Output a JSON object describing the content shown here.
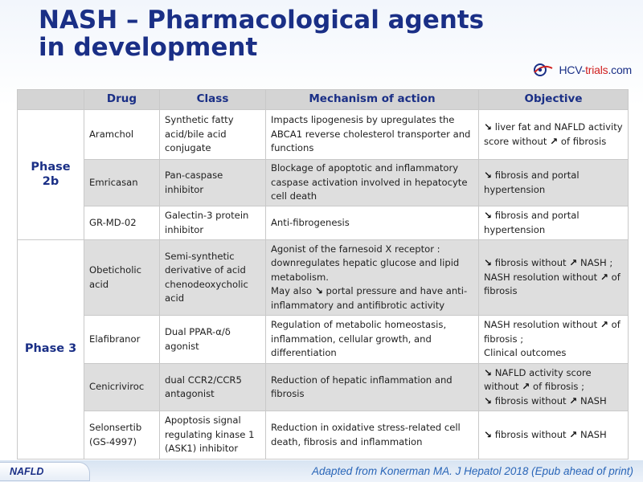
{
  "title": {
    "line1": "NASH – Pharmacological agents",
    "line2": "in development"
  },
  "logo": {
    "text_main": "HCV-",
    "text_accent": "trials",
    "text_end": ".com"
  },
  "table": {
    "headers": [
      "",
      "Drug",
      "Class",
      "Mechanism of action",
      "Objective"
    ],
    "phases": [
      "Phase 2b",
      "Phase 3"
    ],
    "rows": [
      {
        "drug": "Aramchol",
        "class": "Synthetic fatty acid/bile acid conjugate",
        "mechanism": "Impacts lipogenesis by upregulates the ABCA1 reverse cholesterol transporter and functions",
        "objective": [
          "↘",
          " liver fat and NAFLD activity score without ",
          "↗",
          " of fibrosis"
        ]
      },
      {
        "drug": "Emricasan",
        "class": "Pan-caspase inhibitor",
        "mechanism": "Blockage of apoptotic and inflammatory caspase activation involved in hepatocyte cell death",
        "objective": [
          "↘",
          " fibrosis and portal hypertension"
        ]
      },
      {
        "drug": "GR-MD-02",
        "class": "Galectin-3 protein inhibitor",
        "mechanism": "Anti-fibrogenesis",
        "objective": [
          "↘",
          " fibrosis and portal hypertension"
        ]
      },
      {
        "drug": "Obeticholic acid",
        "class": "Semi-synthetic derivative of acid chenodeoxycholic acid",
        "mechanism_lines": [
          "Agonist of the farnesoid X receptor : downregulates hepatic glucose and lipid metabolism.",
          "May also ",
          "↘",
          " portal pressure and have anti-inflammatory and antifibrotic activity"
        ],
        "objective": [
          "↘",
          " fibrosis without ",
          "↗",
          " NASH ; NASH resolution without ",
          "↗",
          " of fibrosis"
        ]
      },
      {
        "drug": "Elafibranor",
        "class": "Dual PPAR-α/δ agonist",
        "mechanism": "Regulation of metabolic homeostasis, inflammation, cellular growth, and differentiation",
        "objective": [
          "NASH resolution without ",
          "↗",
          " of fibrosis ;",
          "Clinical outcomes"
        ]
      },
      {
        "drug": "Cenicriviroc",
        "class": "dual CCR2/CCR5 antagonist",
        "mechanism": "Reduction of hepatic inflammation and fibrosis",
        "objective": [
          "↘",
          " NAFLD activity score without ",
          "↗",
          " of fibrosis ;",
          "↘",
          " fibrosis without ",
          "↗",
          " NASH"
        ]
      },
      {
        "drug": "Selonsertib (GS-4997)",
        "class": "Apoptosis signal regulating kinase 1 (ASK1) inhibitor",
        "mechanism": "Reduction in oxidative stress-related cell death, fibrosis and inflammation",
        "objective": [
          "↘",
          " fibrosis without ",
          "↗",
          " NASH"
        ]
      }
    ]
  },
  "footer": {
    "tag": "NAFLD",
    "source": "Adapted from Konerman MA. J Hepatol 2018 (Epub ahead of print)"
  },
  "colors": {
    "title": "#1a2f86",
    "header_bg": "#d4d4d4",
    "alt_row_bg": "#dedede",
    "source_text": "#2a66b8"
  }
}
